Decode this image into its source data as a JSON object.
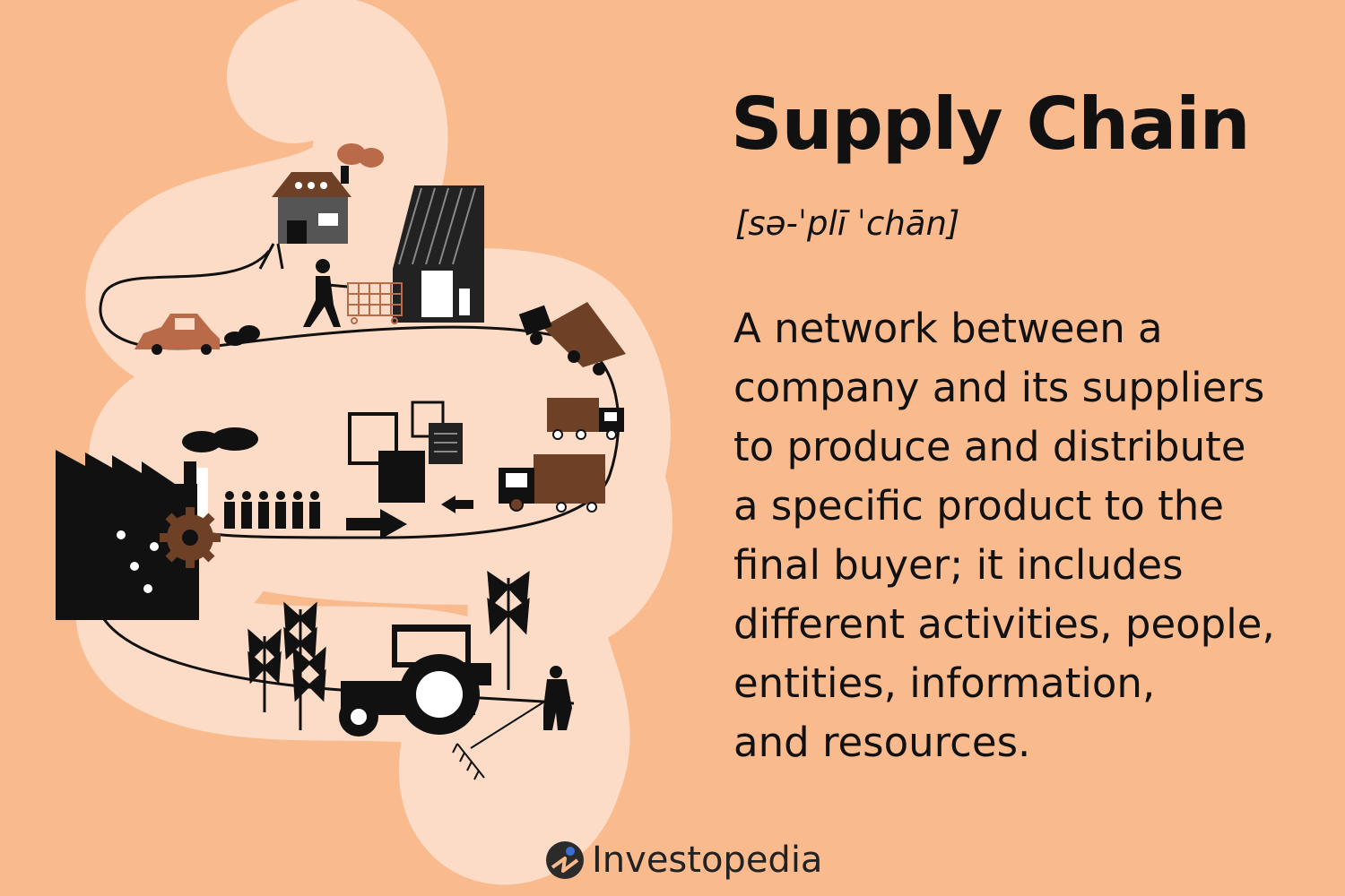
{
  "title": "Supply Chain",
  "pronunciation": "[sə-ˈplī ˈchān]",
  "definition_lines": [
    "A network between a",
    "company and its suppliers",
    "to produce and distribute",
    "a specific product to the",
    "final buyer; it includes",
    "different activities, people,",
    "entities, information,",
    "and resources."
  ],
  "brand": {
    "name": "Investopedia",
    "logo_icon": "investopedia-logo-icon",
    "accent": "#3A6FD8"
  },
  "colors": {
    "background": "#F9BA8E",
    "path": "#FCDCC6",
    "brown": "#6E4126",
    "tan": "#B86A49",
    "ink": "#111111"
  },
  "icons": [
    "house-icon",
    "smoke-icon",
    "solar-building-icon",
    "shopper-icon",
    "shopping-cart-icon",
    "car-icon",
    "exhaust-icon",
    "delivery-truck-icon",
    "documents-icon",
    "factory-icon",
    "gear-icon",
    "workers-icon",
    "arrow-right-icon",
    "arrow-left-icon",
    "plant-icon",
    "tractor-icon",
    "farmer-icon",
    "rake-icon"
  ]
}
